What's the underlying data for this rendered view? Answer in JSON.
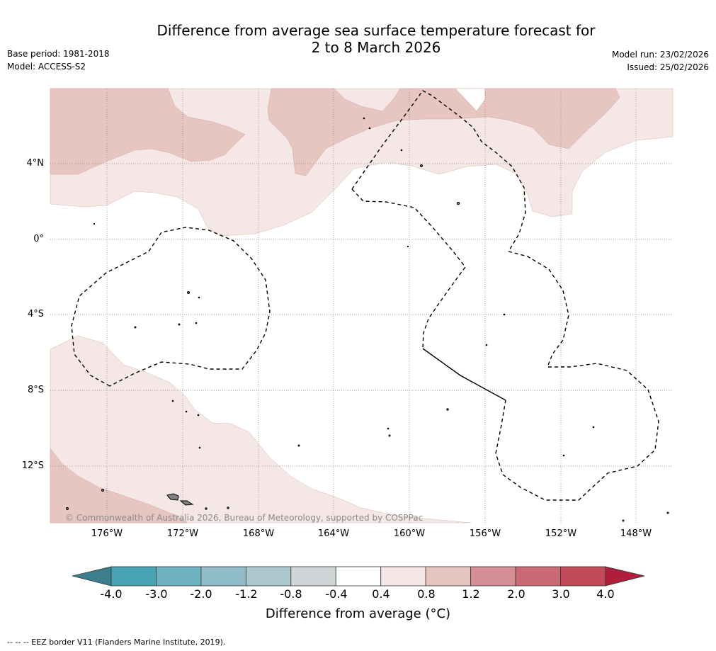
{
  "header": {
    "title_line1": "Difference from average sea surface temperature forecast for",
    "title_line2": "2 to 8 March 2026",
    "base_period": "Base period: 1981-2018",
    "model": "Model: ACCESS-S2",
    "model_run": "Model run: 23/02/2026",
    "issued": "Issued: 25/02/2026"
  },
  "map": {
    "lat_labels": [
      "4°N",
      "0°",
      "4°S",
      "8°S",
      "12°S"
    ],
    "lon_labels": [
      "176°W",
      "172°W",
      "168°W",
      "164°W",
      "160°W",
      "156°W",
      "152°W",
      "148°W"
    ],
    "copyright": "© Commonwealth of Australia 2026, Bureau of Meteorology, supported by COSPPac"
  },
  "colorbar": {
    "title": "Difference from average (°C)",
    "tick_labels": [
      "-4.0",
      "-3.0",
      "-2.0",
      "-1.2",
      "-0.8",
      "-0.4",
      "0.4",
      "0.8",
      "1.2",
      "2.0",
      "3.0",
      "4.0"
    ],
    "colors": [
      "#4aa3b5",
      "#6eb1c0",
      "#8fbcc7",
      "#adc9cf",
      "#d0d6d7",
      "#ffffff",
      "#f5e7e6",
      "#e7c5c0",
      "#d68e95",
      "#ca6a75",
      "#c04a58"
    ],
    "low_extend_color": "#3b7f8c",
    "high_extend_color": "#b01e3c"
  },
  "footnote": "--  --  -- EEZ border V11 (Flanders Marine Institute, 2019)."
}
